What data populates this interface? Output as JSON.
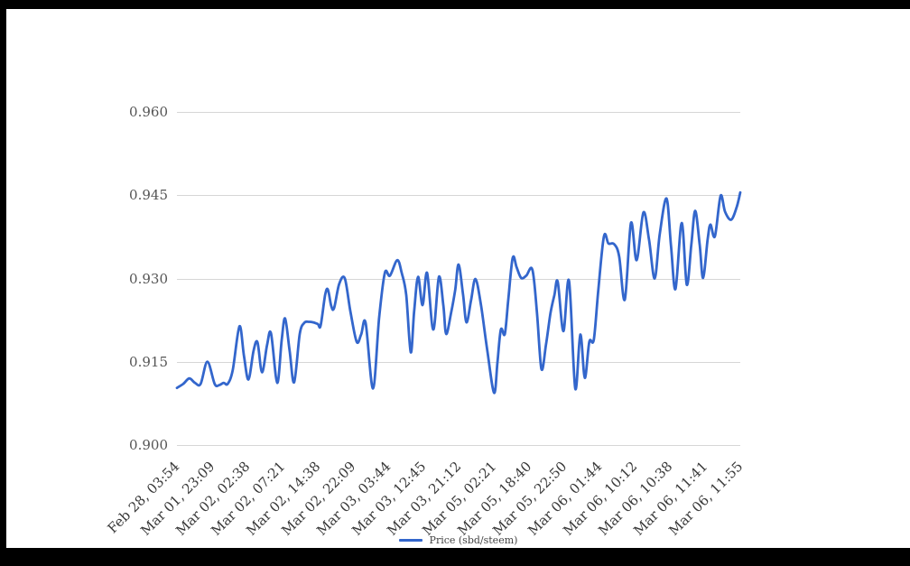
{
  "frame": {
    "border_color": "#000000",
    "background": "#ffffff"
  },
  "chart": {
    "legend": {
      "label": "Price (sbd/steem)",
      "position": "bottom"
    },
    "colors": {
      "line": "#3366cc",
      "gridline": "#d6d6d6",
      "y_axis_text": "#555555",
      "x_axis_text": "#383838"
    }
  },
  "chart_data": {
    "type": "line",
    "title": "",
    "xlabel": "",
    "ylabel": "",
    "grid": "horizontal",
    "legend_position": "bottom",
    "ylim": [
      0.9,
      0.96
    ],
    "y_ticks": [
      0.96,
      0.945,
      0.93,
      0.915,
      0.9
    ],
    "y_tick_labels": [
      "0.960",
      "0.945",
      "0.930",
      "0.915",
      "0.900"
    ],
    "x_tick_labels": [
      "Feb 28, 03:54",
      "Mar 01, 23:09",
      "Mar 02, 02:38",
      "Mar 02, 07:21",
      "Mar 02, 14:38",
      "Mar 02, 22:09",
      "Mar 03, 03:44",
      "Mar 03, 12:45",
      "Mar 03, 21:12",
      "Mar 05, 02:21",
      "Mar 05, 18:40",
      "Mar 05, 22:50",
      "Mar 06, 01:44",
      "Mar 06, 10:12",
      "Mar 06, 10:38",
      "Mar 06, 11:41",
      "Mar 06, 11:55"
    ],
    "series": [
      {
        "name": "Price (sbd/steem)",
        "color": "#3366cc"
      }
    ],
    "points_format": "[x_fraction_across_time_axis, price_sbd_per_steem]",
    "points": [
      [
        0.0,
        0.9103
      ],
      [
        0.011,
        0.911
      ],
      [
        0.022,
        0.912
      ],
      [
        0.032,
        0.9112
      ],
      [
        0.042,
        0.911
      ],
      [
        0.054,
        0.915
      ],
      [
        0.067,
        0.911
      ],
      [
        0.075,
        0.9108
      ],
      [
        0.083,
        0.9112
      ],
      [
        0.09,
        0.911
      ],
      [
        0.099,
        0.9135
      ],
      [
        0.111,
        0.9214
      ],
      [
        0.119,
        0.916
      ],
      [
        0.127,
        0.9118
      ],
      [
        0.136,
        0.917
      ],
      [
        0.143,
        0.9185
      ],
      [
        0.151,
        0.9131
      ],
      [
        0.16,
        0.918
      ],
      [
        0.167,
        0.9201
      ],
      [
        0.178,
        0.9112
      ],
      [
        0.186,
        0.919
      ],
      [
        0.192,
        0.9228
      ],
      [
        0.2,
        0.917
      ],
      [
        0.208,
        0.9113
      ],
      [
        0.218,
        0.92
      ],
      [
        0.226,
        0.922
      ],
      [
        0.234,
        0.9222
      ],
      [
        0.242,
        0.9221
      ],
      [
        0.25,
        0.9218
      ],
      [
        0.255,
        0.9215
      ],
      [
        0.263,
        0.927
      ],
      [
        0.268,
        0.928
      ],
      [
        0.274,
        0.925
      ],
      [
        0.279,
        0.9247
      ],
      [
        0.288,
        0.929
      ],
      [
        0.298,
        0.93
      ],
      [
        0.308,
        0.924
      ],
      [
        0.319,
        0.9186
      ],
      [
        0.327,
        0.9199
      ],
      [
        0.335,
        0.922
      ],
      [
        0.348,
        0.9102
      ],
      [
        0.359,
        0.923
      ],
      [
        0.369,
        0.931
      ],
      [
        0.378,
        0.9305
      ],
      [
        0.391,
        0.9333
      ],
      [
        0.399,
        0.931
      ],
      [
        0.407,
        0.927
      ],
      [
        0.415,
        0.9167
      ],
      [
        0.421,
        0.924
      ],
      [
        0.428,
        0.9303
      ],
      [
        0.436,
        0.9252
      ],
      [
        0.444,
        0.931
      ],
      [
        0.455,
        0.9208
      ],
      [
        0.465,
        0.9303
      ],
      [
        0.473,
        0.925
      ],
      [
        0.478,
        0.92
      ],
      [
        0.487,
        0.924
      ],
      [
        0.494,
        0.928
      ],
      [
        0.5,
        0.9325
      ],
      [
        0.508,
        0.927
      ],
      [
        0.514,
        0.9221
      ],
      [
        0.522,
        0.926
      ],
      [
        0.53,
        0.9299
      ],
      [
        0.54,
        0.925
      ],
      [
        0.551,
        0.917
      ],
      [
        0.563,
        0.9094
      ],
      [
        0.569,
        0.915
      ],
      [
        0.575,
        0.9208
      ],
      [
        0.582,
        0.92
      ],
      [
        0.588,
        0.926
      ],
      [
        0.596,
        0.9337
      ],
      [
        0.603,
        0.932
      ],
      [
        0.611,
        0.9301
      ],
      [
        0.62,
        0.9305
      ],
      [
        0.631,
        0.9316
      ],
      [
        0.639,
        0.924
      ],
      [
        0.647,
        0.9137
      ],
      [
        0.655,
        0.918
      ],
      [
        0.663,
        0.9237
      ],
      [
        0.67,
        0.927
      ],
      [
        0.676,
        0.9294
      ],
      [
        0.686,
        0.9205
      ],
      [
        0.696,
        0.9296
      ],
      [
        0.707,
        0.9102
      ],
      [
        0.716,
        0.9199
      ],
      [
        0.724,
        0.9121
      ],
      [
        0.732,
        0.9186
      ],
      [
        0.74,
        0.919
      ],
      [
        0.748,
        0.928
      ],
      [
        0.758,
        0.9376
      ],
      [
        0.766,
        0.9363
      ],
      [
        0.776,
        0.9362
      ],
      [
        0.785,
        0.934
      ],
      [
        0.795,
        0.9262
      ],
      [
        0.806,
        0.94
      ],
      [
        0.816,
        0.9333
      ],
      [
        0.828,
        0.9419
      ],
      [
        0.838,
        0.937
      ],
      [
        0.848,
        0.93
      ],
      [
        0.857,
        0.938
      ],
      [
        0.869,
        0.9444
      ],
      [
        0.877,
        0.936
      ],
      [
        0.885,
        0.9281
      ],
      [
        0.896,
        0.94
      ],
      [
        0.905,
        0.9289
      ],
      [
        0.913,
        0.936
      ],
      [
        0.92,
        0.9422
      ],
      [
        0.928,
        0.936
      ],
      [
        0.934,
        0.9301
      ],
      [
        0.942,
        0.937
      ],
      [
        0.947,
        0.9397
      ],
      [
        0.955,
        0.9376
      ],
      [
        0.965,
        0.9449
      ],
      [
        0.973,
        0.942
      ],
      [
        0.984,
        0.9406
      ],
      [
        0.994,
        0.943
      ],
      [
        1.0,
        0.9455
      ]
    ]
  }
}
